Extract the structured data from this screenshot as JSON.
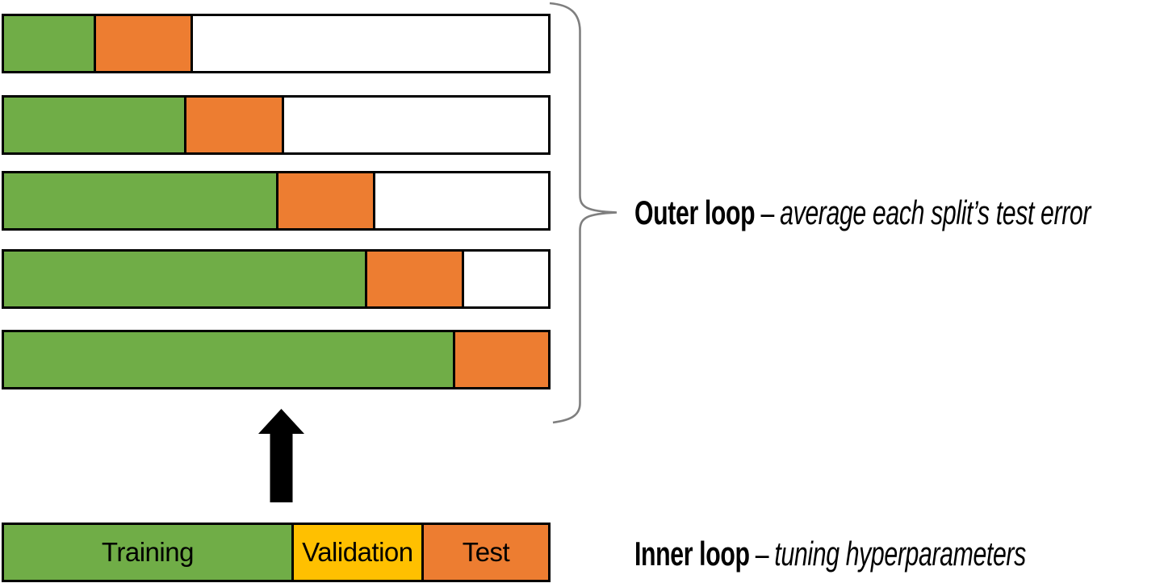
{
  "colors": {
    "training": "#70AD47",
    "validation": "#FFC000",
    "test": "#ED7D31",
    "unused": "#FFFFFF",
    "border": "#000000",
    "brace": "#7F7F7F",
    "arrow": "#000000"
  },
  "outer_loop": {
    "title_bold": "Outer loop",
    "title_dash": "–",
    "title_italic": "average each split’s test error",
    "splits": [
      {
        "train_pct": 16.5,
        "test_pct": 17.8,
        "unused_pct": 65.7
      },
      {
        "train_pct": 33.1,
        "test_pct": 17.9,
        "unused_pct": 49.0
      },
      {
        "train_pct": 50.0,
        "test_pct": 17.8,
        "unused_pct": 32.2
      },
      {
        "train_pct": 66.3,
        "test_pct": 17.8,
        "unused_pct": 15.9
      },
      {
        "train_pct": 82.5,
        "test_pct": 17.5,
        "unused_pct": 0
      }
    ]
  },
  "inner_loop": {
    "title_bold": "Inner loop",
    "title_dash": "–",
    "title_italic": "tuning hyperparameters",
    "segments": [
      {
        "label": "Training",
        "role": "training",
        "pct": 52.8
      },
      {
        "label": "Validation",
        "role": "validation",
        "pct": 23.9
      },
      {
        "label": "Test",
        "role": "test",
        "pct": 23.3
      }
    ]
  }
}
